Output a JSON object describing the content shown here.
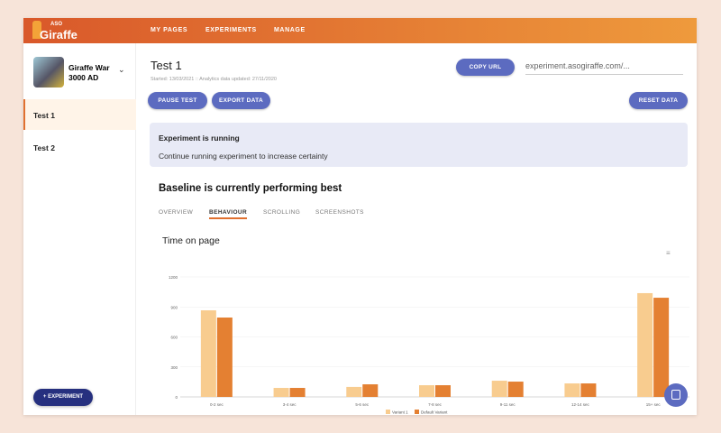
{
  "header": {
    "logo_small": "ASO",
    "logo": "Giraffe",
    "nav": [
      "MY PAGES",
      "EXPERIMENTS",
      "MANAGE"
    ]
  },
  "sidebar": {
    "app_name": "Giraffe War 3000 AD",
    "tests": [
      {
        "label": "Test 1",
        "selected": true
      },
      {
        "label": "Test 2",
        "selected": false
      }
    ],
    "experiment_button": "EXPERIMENT"
  },
  "main": {
    "title": "Test 1",
    "subtitle": "Started: 13/03/2021 :: Analytics data updated: 27/11/2020",
    "copy_url": "COPY URL",
    "url_value": "experiment.asogiraffe.com/...",
    "pause": "PAUSE TEST",
    "export": "EXPORT DATA",
    "reset": "RESET DATA",
    "status_title": "Experiment is running",
    "status_text": "Continue running experiment to increase certainty",
    "performance": "Baseline is currently performing best",
    "tabs": [
      "OVERVIEW",
      "BEHAVIOUR",
      "SCROLLING",
      "SCREENSHOTS"
    ],
    "active_tab": "BEHAVIOUR"
  },
  "colors": {
    "accent": "#5c6bc0",
    "header_start": "#d9582a",
    "header_end": "#ee9a3c",
    "variant1": "#f8cc8f",
    "default_variant": "#e48032"
  },
  "chart_data": {
    "type": "bar",
    "title": "Time on page",
    "categories": [
      "0-2 sec",
      "3-4 sec",
      "5-6 sec",
      "7-8 sec",
      "9-11 sec",
      "12-14 sec",
      "15+ sec"
    ],
    "series": [
      {
        "name": "Variant 1",
        "values": [
          866,
          90,
          100,
          117,
          162,
          135,
          1038
        ]
      },
      {
        "name": "Default Variant",
        "values": [
          794,
          90,
          126,
          117,
          153,
          135,
          992
        ]
      }
    ],
    "ylim": [
      0,
      1200
    ],
    "yticks": [
      0,
      300,
      600,
      900,
      1200
    ],
    "grid": true,
    "legend": "bottom"
  }
}
